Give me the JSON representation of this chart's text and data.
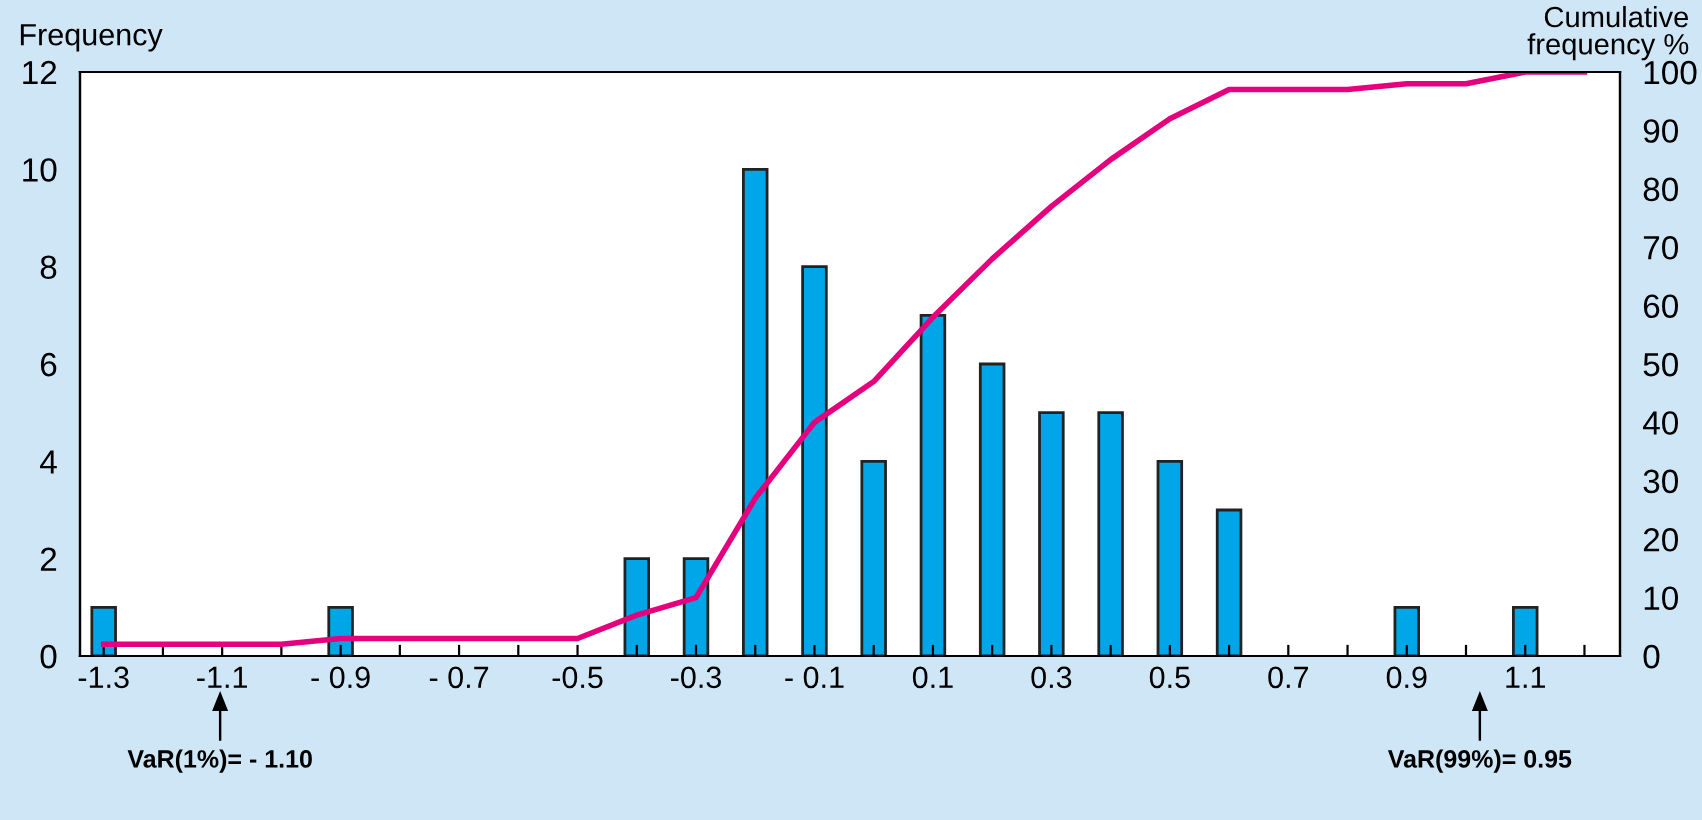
{
  "chart_data": {
    "type": "bar",
    "ylabel": "Frequency",
    "y2label": "Cumulative\nfrequency %",
    "x": [
      -1.3,
      -1.2,
      -1.1,
      -1.0,
      -0.9,
      -0.8,
      -0.7,
      -0.6,
      -0.5,
      -0.4,
      -0.3,
      -0.2,
      -0.1,
      0.0,
      0.1,
      0.2,
      0.3,
      0.4,
      0.5,
      0.6,
      0.7,
      0.8,
      0.9,
      1.0,
      1.1,
      1.2
    ],
    "series": [
      {
        "color": "#00a6e8",
        "values": [
          1,
          0,
          0,
          0,
          1,
          0,
          0,
          0,
          0,
          2,
          2,
          10,
          8,
          4,
          7,
          6,
          5,
          5,
          4,
          3,
          0,
          0,
          1,
          0,
          1,
          0
        ]
      },
      {
        "type": "line",
        "axis": "y2",
        "color": "#e5007e",
        "values": [
          2,
          2,
          2,
          2,
          3,
          3,
          3,
          3,
          3,
          7,
          10,
          27,
          40,
          47,
          58,
          68,
          77,
          85,
          92,
          97,
          97,
          97,
          98,
          98,
          100,
          100
        ]
      }
    ],
    "xlim": [
      -1.34,
      1.26
    ],
    "xticks": [
      {
        "value": -1.3,
        "label": "-1.3"
      },
      {
        "value": -1.2,
        "label": null
      },
      {
        "value": -1.1,
        "label": "-1.1"
      },
      {
        "value": -1.0,
        "label": null
      },
      {
        "value": -0.9,
        "label": "- 0.9"
      },
      {
        "value": -0.8,
        "label": null
      },
      {
        "value": -0.7,
        "label": "- 0.7"
      },
      {
        "value": -0.6,
        "label": null
      },
      {
        "value": -0.5,
        "label": "-0.5"
      },
      {
        "value": -0.4,
        "label": null
      },
      {
        "value": -0.3,
        "label": "-0.3"
      },
      {
        "value": -0.2,
        "label": null
      },
      {
        "value": -0.1,
        "label": "- 0.1"
      },
      {
        "value": 0.0,
        "label": null
      },
      {
        "value": 0.1,
        "label": "0.1"
      },
      {
        "value": 0.2,
        "label": null
      },
      {
        "value": 0.3,
        "label": "0.3"
      },
      {
        "value": 0.4,
        "label": null
      },
      {
        "value": 0.5,
        "label": "0.5"
      },
      {
        "value": 0.6,
        "label": null
      },
      {
        "value": 0.7,
        "label": "0.7"
      },
      {
        "value": 0.8,
        "label": null
      },
      {
        "value": 0.9,
        "label": "0.9"
      },
      {
        "value": 1.0,
        "label": null
      },
      {
        "value": 1.1,
        "label": "1.1"
      },
      {
        "value": 1.2,
        "label": null
      }
    ],
    "ylim": [
      0,
      12
    ],
    "yticks": [
      0,
      2,
      4,
      6,
      8,
      10,
      12
    ],
    "y2lim": [
      0,
      100
    ],
    "y2ticks": [
      0,
      10,
      20,
      30,
      40,
      50,
      60,
      70,
      80,
      90,
      100
    ],
    "annotations": [
      "VaR(1%)= - 1.10",
      "VaR(99%)= 0.95"
    ],
    "grid": false,
    "legend": false
  }
}
